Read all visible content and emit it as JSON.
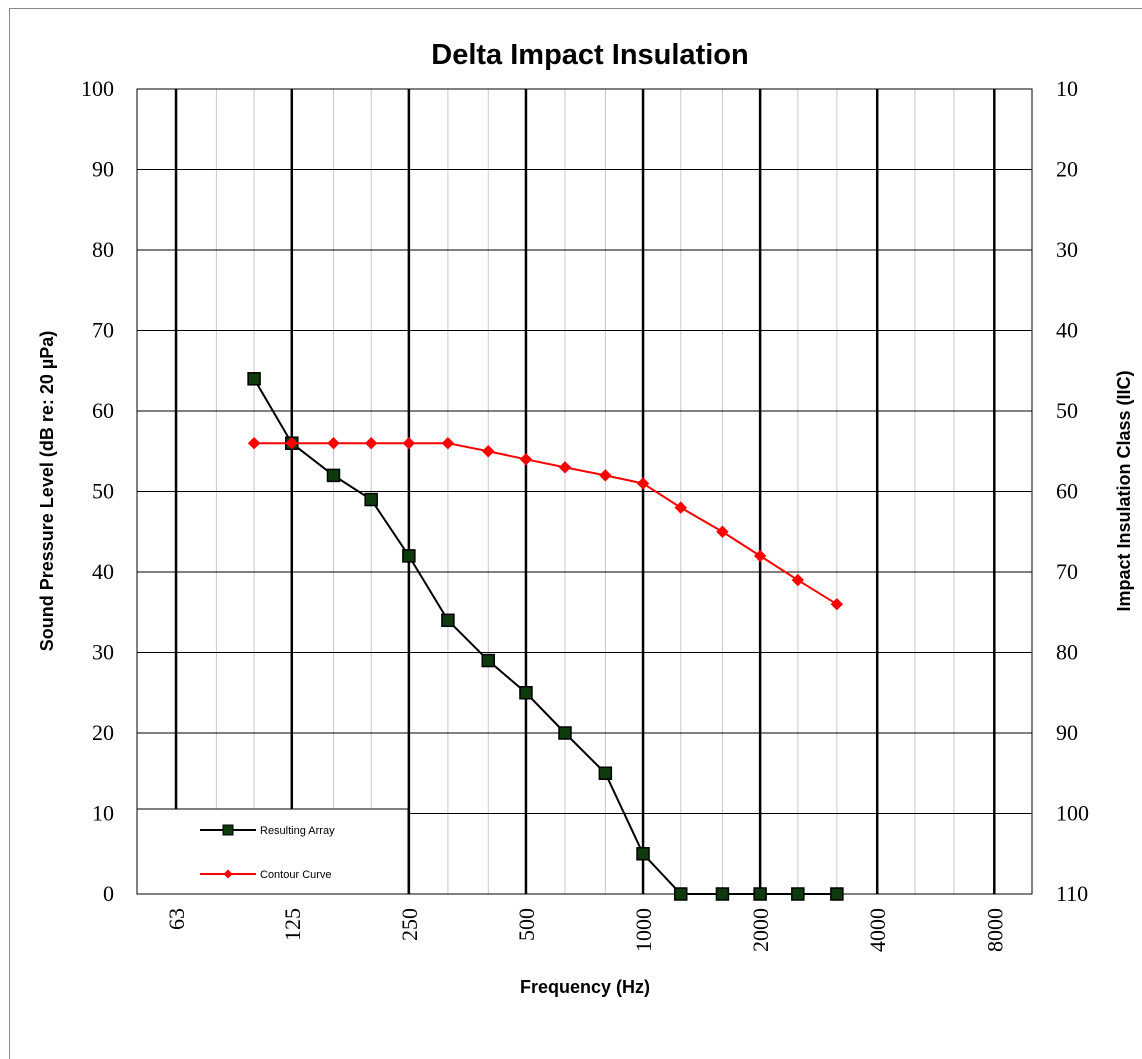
{
  "chart_data": {
    "type": "line",
    "title": "Delta Impact Insulation",
    "xlabel": "Frequency (Hz)",
    "ylabel": "Sound Pressure Level (dB re: 20 µPa)",
    "y2label": "Impact Insulation Class (IIC)",
    "x_scale": "log",
    "x_ticks": [
      "63",
      "125",
      "250",
      "500",
      "1000",
      "2000",
      "4000",
      "8000"
    ],
    "y_ticks": [
      0,
      10,
      20,
      30,
      40,
      50,
      60,
      70,
      80,
      90,
      100
    ],
    "y2_ticks": [
      110,
      100,
      90,
      80,
      70,
      60,
      50,
      40,
      30,
      20,
      10
    ],
    "ylim": [
      0,
      100
    ],
    "y2lim": [
      110,
      10
    ],
    "grid": true,
    "legend_position": "bottom-left",
    "series": [
      {
        "name": "Resulting Array",
        "color": "#000000",
        "marker_fill": "#0d3b0d",
        "marker": "square",
        "x": [
          100,
          125,
          160,
          200,
          250,
          315,
          400,
          500,
          630,
          800,
          1000,
          1250,
          1600,
          2000,
          2500,
          3150
        ],
        "values": [
          64,
          56,
          52,
          49,
          42,
          34,
          29,
          25,
          20,
          15,
          5,
          0,
          0,
          0,
          0,
          0
        ]
      },
      {
        "name": "Contour Curve",
        "color": "#ff0000",
        "marker": "diamond",
        "x": [
          100,
          125,
          160,
          200,
          250,
          315,
          400,
          500,
          630,
          800,
          1000,
          1250,
          1600,
          2000,
          2500,
          3150
        ],
        "values": [
          56,
          56,
          56,
          56,
          56,
          56,
          55,
          54,
          53,
          52,
          51,
          48,
          45,
          42,
          39,
          36
        ]
      }
    ]
  }
}
